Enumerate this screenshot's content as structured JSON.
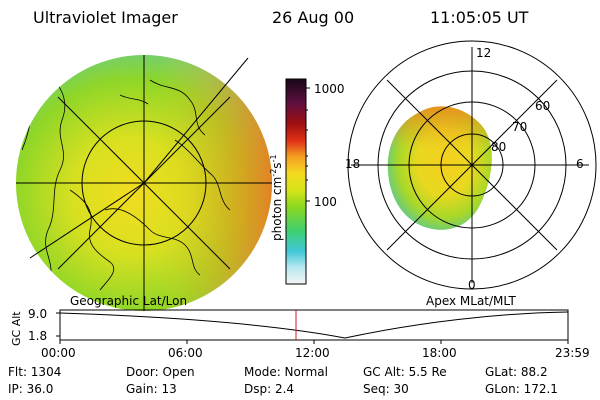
{
  "header": {
    "instrument": "Ultraviolet Imager",
    "date": "26 Aug 00",
    "time": "11:05:05 UT"
  },
  "colorbar": {
    "label": "photon cm",
    "label_exp1": "-2",
    "label_mid": "s",
    "label_exp2": "-1",
    "ticks": [
      "1000",
      "100"
    ]
  },
  "geo_map": {
    "caption": "Geographic Lat/Lon"
  },
  "polar_plot": {
    "caption": "Apex MLat/MLT",
    "mlt_labels": [
      "12",
      "18",
      "6",
      "0"
    ],
    "mlat_labels": [
      "60",
      "70",
      "80"
    ]
  },
  "altitude_strip": {
    "axis_label": "GC Alt",
    "y_ticks": [
      "9.0",
      "1.8"
    ],
    "time_ticks": [
      "00:00",
      "06:00",
      "12:00",
      "18:00",
      "23:59"
    ]
  },
  "status": {
    "flt": "Flt:  1304",
    "ip": "IP:  36.0",
    "door": "Door:  Open",
    "gain": "Gain:  13",
    "mode": "Mode:  Normal",
    "dsp": "Dsp:      2.4",
    "gc_alt": "GC Alt:  5.5 Re",
    "seq": "Seq:  30",
    "glat": "GLat:    88.2",
    "glon": "GLon:  172.1"
  },
  "colors": {
    "marker": "#cc2222",
    "image_green": "#7ed320",
    "image_yellow": "#f0d020",
    "image_orange": "#f08a1a"
  }
}
